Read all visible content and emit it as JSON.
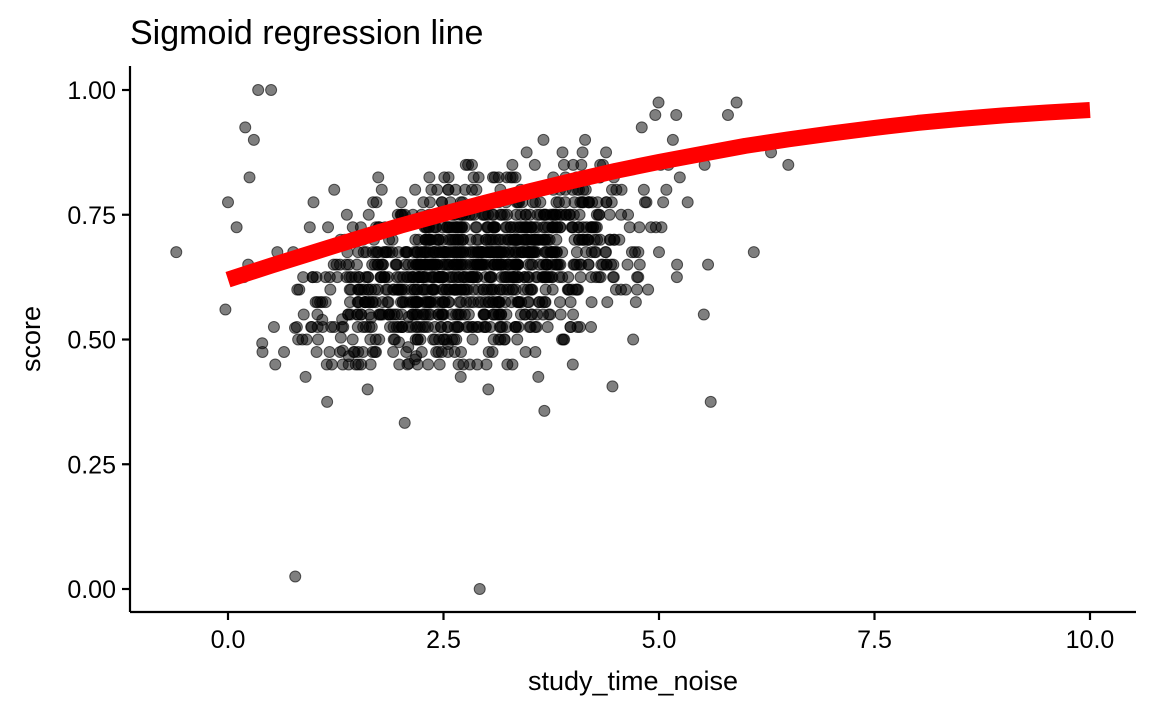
{
  "chart_data": {
    "type": "scatter",
    "title": "Sigmoid regression line",
    "xlabel": "study_time_noise",
    "ylabel": "score",
    "xlim": [
      -0.6,
      10.0
    ],
    "ylim": [
      0.0,
      1.0
    ],
    "x_ticks": [
      0.0,
      2.5,
      5.0,
      7.5,
      10.0
    ],
    "x_tick_labels": [
      "0.0",
      "2.5",
      "5.0",
      "7.5",
      "10.0"
    ],
    "y_ticks": [
      0.0,
      0.25,
      0.5,
      0.75,
      1.0
    ],
    "y_tick_labels": [
      "0.00",
      "0.25",
      "0.50",
      "0.75",
      "1.00"
    ],
    "grid": false,
    "legend": "none",
    "point_color": "#000000",
    "point_opacity": 0.5,
    "points": {
      "x": [
        -0.6,
        0.78,
        2.92,
        2.05,
        1.15,
        1.62,
        3.67,
        5.6,
        4.46,
        3.02,
        3.6,
        0.9,
        2.7,
        0.4,
        0.65,
        4.7,
        5.52,
        6.1,
        6.5,
        6.3,
        5.8,
        5.9,
        5.2,
        4.8,
        0.0,
        -0.03,
        0.1,
        0.25,
        0.2,
        0.3,
        0.35,
        0.5,
        3.3,
        2.2,
        1.4,
        1.3,
        4.0,
        3.9,
        2.4,
        2.6
      ],
      "y": [
        0.675,
        0.025,
        0.0,
        0.333,
        0.375,
        0.4,
        0.357,
        0.375,
        0.406,
        0.4,
        0.425,
        0.425,
        0.425,
        0.475,
        0.475,
        0.5,
        0.55,
        0.675,
        0.85,
        0.875,
        0.95,
        0.975,
        0.95,
        0.925,
        0.775,
        0.56,
        0.725,
        0.825,
        0.925,
        0.9,
        1.0,
        1.0,
        0.45,
        0.45,
        0.45,
        0.475,
        0.45,
        0.5,
        0.5,
        0.5
      ]
    },
    "fit_line": {
      "color": "#ff0000",
      "x": [
        0.0,
        0.5,
        1.0,
        1.5,
        2.0,
        2.5,
        3.0,
        3.5,
        4.0,
        4.5,
        5.0,
        5.5,
        6.0,
        6.5,
        7.0,
        7.5,
        8.0,
        8.5,
        9.0,
        9.5,
        10.0
      ],
      "y": [
        0.62,
        0.648,
        0.675,
        0.702,
        0.728,
        0.752,
        0.775,
        0.797,
        0.818,
        0.838,
        0.856,
        0.872,
        0.888,
        0.901,
        0.913,
        0.924,
        0.934,
        0.942,
        0.949,
        0.955,
        0.96
      ]
    }
  }
}
